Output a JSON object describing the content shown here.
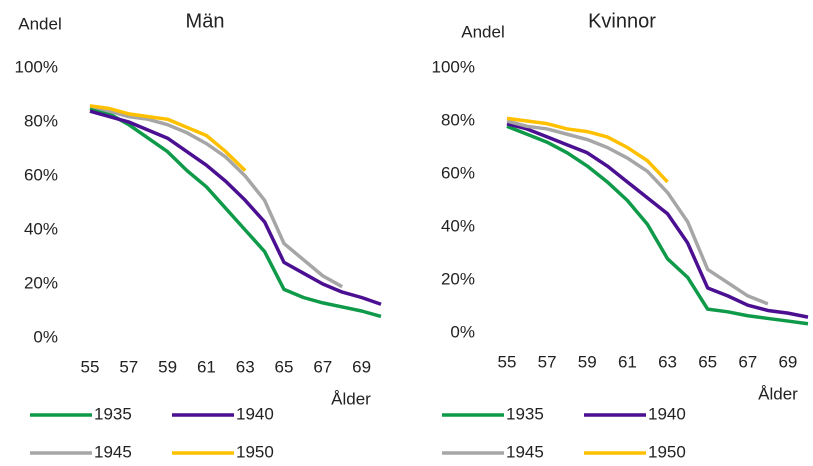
{
  "chart_data": [
    {
      "type": "line",
      "title": "Män",
      "ylabel": "Andel",
      "xlabel": "Ålder",
      "x": [
        55,
        56,
        57,
        58,
        59,
        60,
        61,
        62,
        63,
        64,
        65,
        66,
        67,
        68,
        69,
        70
      ],
      "xlim": [
        55,
        70
      ],
      "xticks": [
        55,
        57,
        59,
        61,
        63,
        65,
        67,
        69
      ],
      "ylim": [
        0,
        100
      ],
      "yticks": [
        {
          "value": 0,
          "label": "0%"
        },
        {
          "value": 20,
          "label": "20%"
        },
        {
          "value": 40,
          "label": "40%"
        },
        {
          "value": 60,
          "label": "60%"
        },
        {
          "value": 80,
          "label": "80%"
        },
        {
          "value": 100,
          "label": "100%"
        }
      ],
      "grid": false,
      "series": [
        {
          "name": "1935",
          "color": "#0f9a4a",
          "values": [
            85,
            83,
            79,
            74,
            69,
            62,
            56,
            48,
            40,
            32,
            18,
            15,
            13,
            11.5,
            10,
            8
          ]
        },
        {
          "name": "1940",
          "color": "#4b0f91",
          "values": [
            84,
            82,
            80,
            77,
            74,
            69,
            64,
            58,
            51,
            43,
            28,
            24,
            20,
            17,
            15,
            12.5
          ]
        },
        {
          "name": "1945",
          "color": "#a6a6a6",
          "values": [
            86,
            84,
            82,
            81,
            79,
            76,
            72,
            67,
            60,
            51,
            35,
            29,
            23,
            19,
            null,
            null
          ]
        },
        {
          "name": "1950",
          "color": "#ffc000",
          "values": [
            86,
            85,
            83,
            82,
            81,
            78,
            75,
            69,
            62,
            null,
            null,
            null,
            null,
            null,
            null,
            null
          ]
        }
      ]
    },
    {
      "type": "line",
      "title": "Kvinnor",
      "ylabel": "Andel",
      "xlabel": "Ålder",
      "x": [
        55,
        56,
        57,
        58,
        59,
        60,
        61,
        62,
        63,
        64,
        65,
        66,
        67,
        68,
        69,
        70
      ],
      "xlim": [
        55,
        70
      ],
      "xticks": [
        55,
        57,
        59,
        61,
        63,
        65,
        67,
        69
      ],
      "ylim": [
        0,
        100
      ],
      "yticks": [
        {
          "value": 0,
          "label": "0%"
        },
        {
          "value": 20,
          "label": "20%"
        },
        {
          "value": 40,
          "label": "40%"
        },
        {
          "value": 60,
          "label": "60%"
        },
        {
          "value": 80,
          "label": "80%"
        },
        {
          "value": 100,
          "label": "100%"
        }
      ],
      "grid": false,
      "series": [
        {
          "name": "1935",
          "color": "#0f9a4a",
          "values": [
            78,
            75,
            72,
            68,
            63,
            57,
            50,
            41,
            28,
            21,
            9,
            8,
            6.5,
            5.5,
            4.5,
            3.5
          ]
        },
        {
          "name": "1940",
          "color": "#4b0f91",
          "values": [
            79,
            77,
            74,
            71,
            68,
            63,
            57,
            51,
            45,
            34,
            17,
            14,
            10.5,
            8.5,
            7.5,
            6
          ]
        },
        {
          "name": "1945",
          "color": "#a6a6a6",
          "values": [
            80,
            78,
            77,
            75,
            73,
            70,
            66,
            61,
            53,
            42,
            24,
            19,
            14,
            11,
            null,
            null
          ]
        },
        {
          "name": "1950",
          "color": "#ffc000",
          "values": [
            81,
            80,
            79,
            77,
            76,
            74,
            70,
            65,
            57,
            null,
            null,
            null,
            null,
            null,
            null,
            null
          ]
        }
      ]
    }
  ]
}
